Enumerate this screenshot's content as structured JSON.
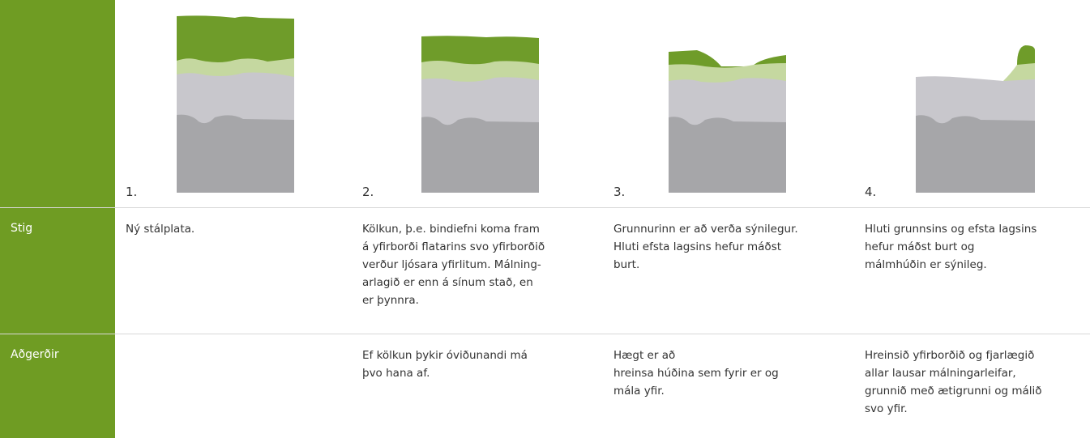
{
  "stages": [
    "1.",
    "2.",
    "3.",
    "4."
  ],
  "table": {
    "rows": [
      {
        "label": "Stig",
        "cells": [
          [
            "Ný stálplata."
          ],
          [
            "Kölkun, þ.e. bindiefni koma fram",
            "á yfirborði flatarins svo yfirborðið",
            "verður ljósara yfirlitum. Málning-",
            "arlagið er enn á sínum stað, en",
            "er þynnra."
          ],
          [
            "Grunnurinn er að verða sýnilegur.",
            "Hluti efsta lagsins hefur máðst",
            "burt."
          ],
          [
            "Hluti grunnsins og efsta lagsins",
            "hefur máðst burt og",
            "málmhúðin er sýnileg."
          ]
        ]
      },
      {
        "label": "Aðgerðir",
        "cells": [
          [],
          [
            "Ef kölkun þykir óviðunandi má",
            "þvo hana af."
          ],
          [
            "Hægt er að",
            "hreinsa húðina sem fyrir er og",
            "mála yfir."
          ],
          [
            "Hreinsið yfirborðið og fjarlægið",
            "allar lausar málningarleifar,",
            "grunnið með ætigrunni og málið",
            "svo yfir."
          ]
        ]
      }
    ]
  }
}
